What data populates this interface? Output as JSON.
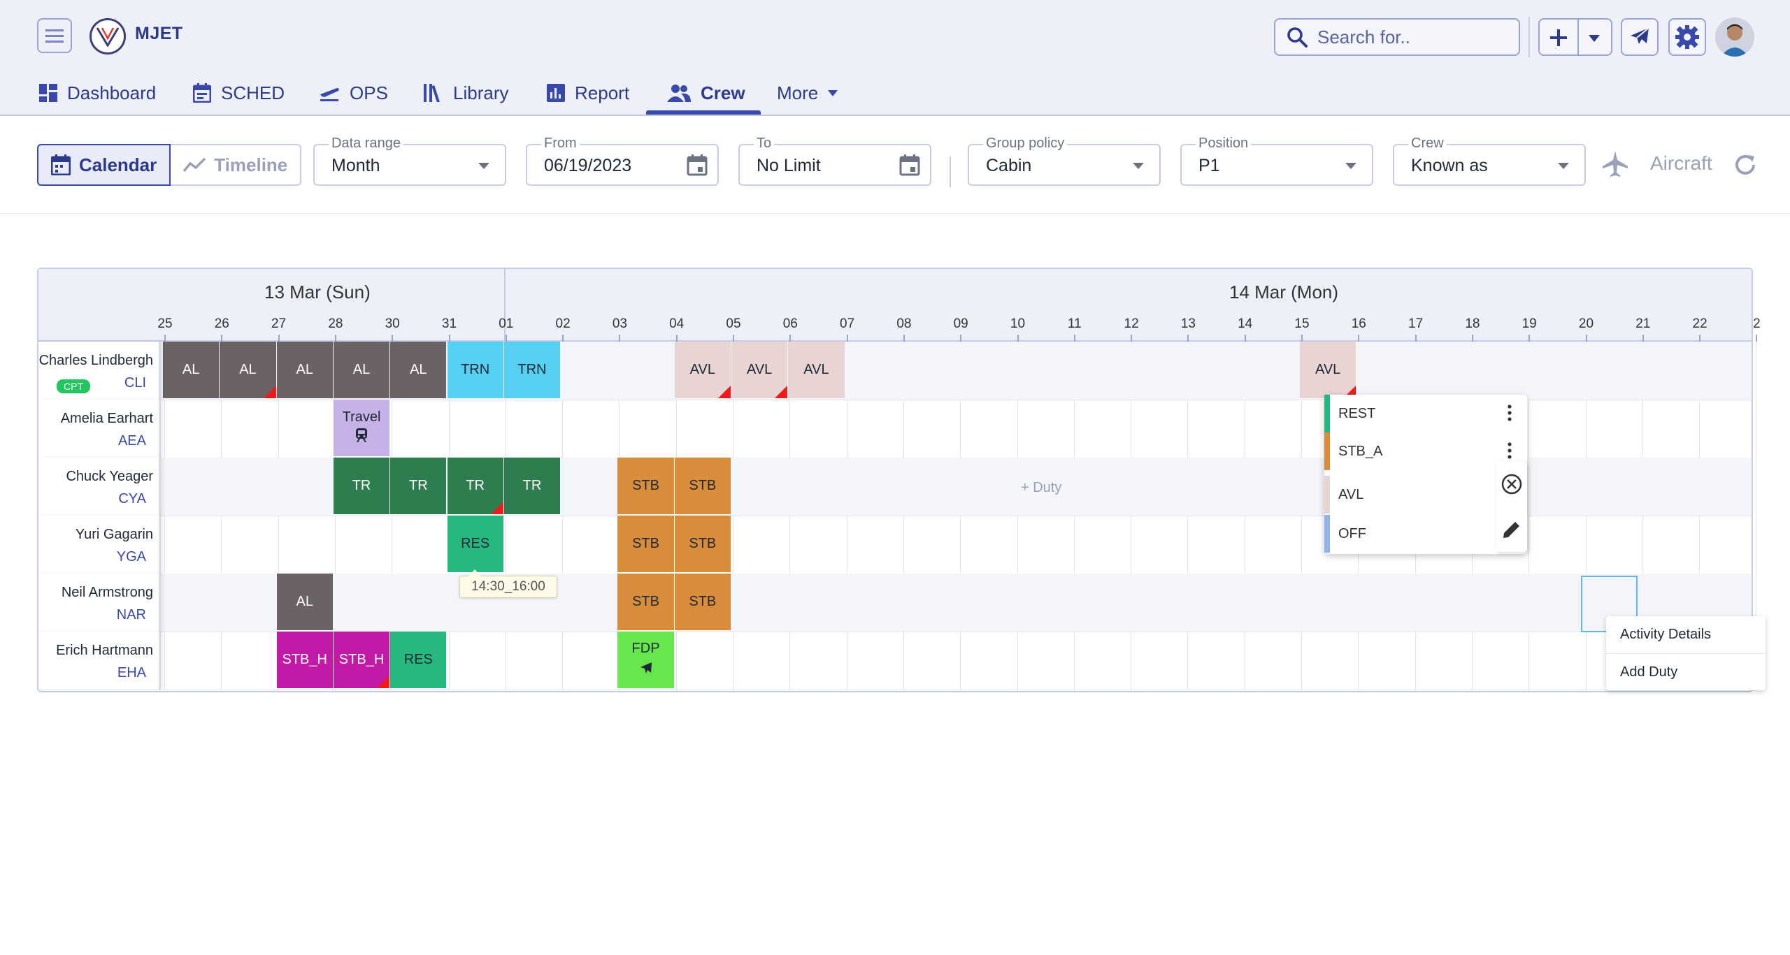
{
  "app": {
    "name": "MJET"
  },
  "search": {
    "placeholder": "Search for.."
  },
  "nav": {
    "items": [
      {
        "label": "Dashboard"
      },
      {
        "label": "SCHED"
      },
      {
        "label": "OPS"
      },
      {
        "label": "Library"
      },
      {
        "label": "Report"
      },
      {
        "label": "Crew"
      },
      {
        "label": "More"
      }
    ]
  },
  "toolbar": {
    "view_calendar": "Calendar",
    "view_timeline": "Timeline",
    "data_range_label": "Data range",
    "data_range_value": "Month",
    "from_label": "From",
    "from_value": "06/19/2023",
    "to_label": "To",
    "to_value": "No Limit",
    "group_label": "Group policy",
    "group_value": "Cabin",
    "position_label": "Position",
    "position_value": "P1",
    "crew_label": "Crew",
    "crew_value": "Known as",
    "aircraft_label": "Aircraft"
  },
  "calendar": {
    "days": [
      "13 Mar (Sun)",
      "14 Mar (Mon)"
    ],
    "hours": [
      "25",
      "26",
      "27",
      "28",
      "30",
      "31",
      "01",
      "02",
      "03",
      "04",
      "05",
      "06",
      "07",
      "08",
      "09",
      "10",
      "11",
      "12",
      "13",
      "14",
      "15",
      "16",
      "17",
      "18",
      "19",
      "20",
      "21",
      "22",
      "2"
    ],
    "crew": [
      {
        "name": "Charles Lindbergh",
        "code": "CLI",
        "badge": "CPT"
      },
      {
        "name": "Amelia Earhart",
        "code": "AEA"
      },
      {
        "name": "Chuck Yeager",
        "code": "CYA"
      },
      {
        "name": "Yuri Gagarin",
        "code": "YGA"
      },
      {
        "name": "Neil Armstrong",
        "code": "NAR"
      },
      {
        "name": "Erich Hartmann",
        "code": "EHA"
      }
    ],
    "duties": [
      {
        "row": 0,
        "col": 0,
        "label": "AL",
        "cls": "c-al"
      },
      {
        "row": 0,
        "col": 1,
        "label": "AL",
        "cls": "c-al",
        "flag": true
      },
      {
        "row": 0,
        "col": 2,
        "label": "AL",
        "cls": "c-al"
      },
      {
        "row": 0,
        "col": 3,
        "label": "AL",
        "cls": "c-al"
      },
      {
        "row": 0,
        "col": 4,
        "label": "AL",
        "cls": "c-al"
      },
      {
        "row": 0,
        "col": 5,
        "label": "TRN",
        "cls": "c-trn"
      },
      {
        "row": 0,
        "col": 6,
        "label": "TRN",
        "cls": "c-trn"
      },
      {
        "row": 0,
        "col": 9,
        "label": "AVL",
        "cls": "c-avl",
        "flag": true
      },
      {
        "row": 0,
        "col": 10,
        "label": "AVL",
        "cls": "c-avl",
        "flag": true
      },
      {
        "row": 0,
        "col": 11,
        "label": "AVL",
        "cls": "c-avl"
      },
      {
        "row": 0,
        "col": 20,
        "label": "AVL",
        "cls": "c-avl",
        "flag": true
      },
      {
        "row": 1,
        "col": 3,
        "label": "Travel",
        "cls": "c-travel",
        "icon": "train"
      },
      {
        "row": 2,
        "col": 3,
        "label": "TR",
        "cls": "c-tr"
      },
      {
        "row": 2,
        "col": 4,
        "label": "TR",
        "cls": "c-tr"
      },
      {
        "row": 2,
        "col": 5,
        "label": "TR",
        "cls": "c-tr",
        "flag": true
      },
      {
        "row": 2,
        "col": 6,
        "label": "TR",
        "cls": "c-tr"
      },
      {
        "row": 2,
        "col": 8,
        "label": "STB",
        "cls": "c-stb"
      },
      {
        "row": 2,
        "col": 9,
        "label": "STB",
        "cls": "c-stb"
      },
      {
        "row": 3,
        "col": 5,
        "label": "RES",
        "cls": "c-res"
      },
      {
        "row": 3,
        "col": 8,
        "label": "STB",
        "cls": "c-stb"
      },
      {
        "row": 3,
        "col": 9,
        "label": "STB",
        "cls": "c-stb"
      },
      {
        "row": 4,
        "col": 2,
        "label": "AL",
        "cls": "c-al"
      },
      {
        "row": 4,
        "col": 8,
        "label": "STB",
        "cls": "c-stb"
      },
      {
        "row": 4,
        "col": 9,
        "label": "STB",
        "cls": "c-stb"
      },
      {
        "row": 5,
        "col": 2,
        "label": "STB_H",
        "cls": "c-stbh"
      },
      {
        "row": 5,
        "col": 3,
        "label": "STB_H",
        "cls": "c-stbh",
        "flag": true
      },
      {
        "row": 5,
        "col": 4,
        "label": "RES",
        "cls": "c-res"
      },
      {
        "row": 5,
        "col": 8,
        "label": "FDP",
        "cls": "c-fdp",
        "icon": "plane"
      }
    ],
    "add_duty_label": "+ Duty",
    "tooltip": "14:30_16:00"
  },
  "type_menu": {
    "items": [
      {
        "label": "REST",
        "color": "#25b980"
      },
      {
        "label": "STB_A",
        "color": "#d98c3a"
      },
      {
        "label": "AVL",
        "color": "#e8d4d2"
      },
      {
        "label": "OFF",
        "color": "#90b4e8"
      }
    ]
  },
  "context_menu": {
    "activity_details": "Activity Details",
    "add_duty": "Add Duty"
  }
}
